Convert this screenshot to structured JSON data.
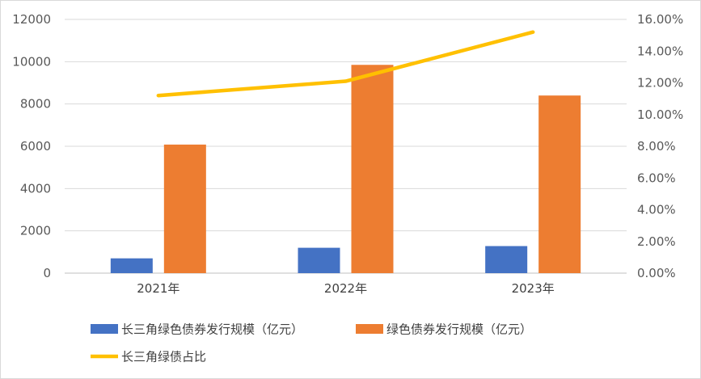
{
  "chart_data": {
    "type": "bar",
    "categories": [
      "2021年",
      "2022年",
      "2023年"
    ],
    "series": [
      {
        "name": "长三角绿色债券发行规模（亿元）",
        "kind": "bar",
        "axis": "left",
        "color": "#4472C4",
        "values": [
          700,
          1200,
          1280
        ]
      },
      {
        "name": "绿色债券发行规模（亿元）",
        "kind": "bar",
        "axis": "left",
        "color": "#ED7D31",
        "values": [
          6080,
          9850,
          8400
        ]
      },
      {
        "name": "长三角绿债占比",
        "kind": "line",
        "axis": "right",
        "color": "#FFC000",
        "values": [
          0.112,
          0.121,
          0.152
        ]
      }
    ],
    "left_axis": {
      "ylim": [
        0,
        12000
      ],
      "ticks": [
        "0",
        "2000",
        "4000",
        "6000",
        "8000",
        "10000",
        "12000"
      ]
    },
    "right_axis": {
      "ylim": [
        0,
        0.16
      ],
      "ticks": [
        "0.00%",
        "2.00%",
        "4.00%",
        "6.00%",
        "8.00%",
        "10.00%",
        "12.00%",
        "14.00%",
        "16.00%"
      ]
    },
    "grid": true,
    "legend_position": "bottom"
  }
}
